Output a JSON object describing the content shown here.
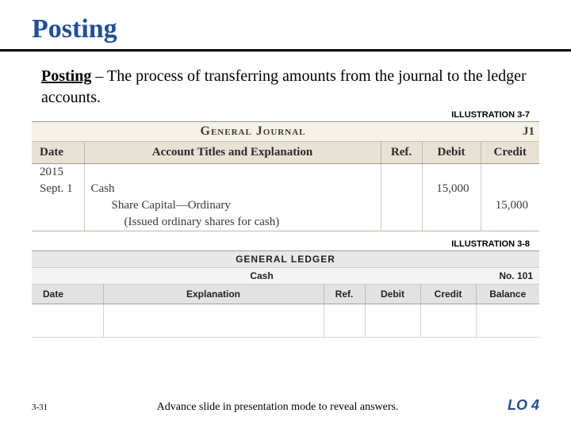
{
  "title": "Posting",
  "definition": {
    "term": "Posting",
    "text": " – The process of transferring amounts from the journal to the ledger accounts."
  },
  "illus1_label": "ILLUSTRATION 3-7",
  "illus2_label": "ILLUSTRATION 3-8",
  "journal": {
    "heading": "General Journal",
    "page_ref": "J1",
    "columns": {
      "date": "Date",
      "title": "Account Titles and Explanation",
      "ref": "Ref.",
      "debit": "Debit",
      "credit": "Credit"
    },
    "entry": {
      "year": "2015",
      "date": "Sept. 1",
      "line1": "Cash",
      "line2": "Share Capital—Ordinary",
      "line3": "(Issued ordinary shares for cash)",
      "debit": "15,000",
      "credit": "15,000"
    },
    "colors": {
      "titlebar_bg": "#f5f1e6",
      "headrow_bg": "#e7e2d4",
      "border": "#bcb7a8"
    }
  },
  "ledger": {
    "heading": "GENERAL LEDGER",
    "account_name": "Cash",
    "account_no": "No. 101",
    "columns": {
      "date": "Date",
      "expl": "Explanation",
      "ref": "Ref.",
      "debit": "Debit",
      "credit": "Credit",
      "balance": "Balance"
    },
    "colors": {
      "titlebar_bg": "#e8e8e8",
      "acctrow_bg": "#f4f4f4",
      "headrow_bg": "#e2e2e2",
      "border": "#bdbdbd"
    }
  },
  "footer": {
    "slide_num": "3-31",
    "advance": "Advance slide in presentation mode to reveal answers.",
    "lo": "LO 4"
  },
  "theme": {
    "title_color": "#1f4e9c",
    "rule_color": "#000000",
    "bg": "#ffffff"
  }
}
